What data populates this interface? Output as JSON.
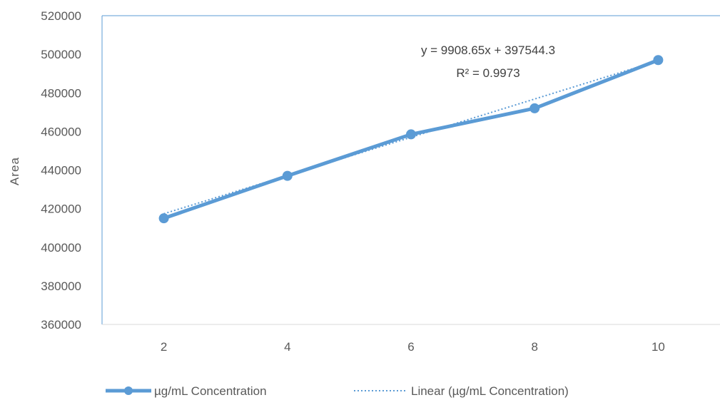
{
  "chart_data": {
    "type": "line",
    "x": [
      2,
      4,
      6,
      8,
      10
    ],
    "xlim": [
      1,
      11
    ],
    "ylim": [
      360000,
      520000
    ],
    "ytick_step": 20000,
    "xticks": [
      "2",
      "4",
      "6",
      "8",
      "10"
    ],
    "yticks": [
      "360000",
      "380000",
      "400000",
      "420000",
      "440000",
      "460000",
      "480000",
      "500000",
      "520000"
    ],
    "ylabel": "Area",
    "xlabel": "",
    "title": "",
    "grid": false,
    "legend_position": "bottom",
    "series": [
      {
        "name": "µg/mL Concentration",
        "values": [
          415000,
          437000,
          458500,
          472000,
          497000
        ],
        "color": "#5b9bd5",
        "style": "solid-with-markers"
      }
    ],
    "trendline": {
      "name": "Linear (µg/mL Concentration)",
      "type": "linear",
      "slope": 9908.65,
      "intercept": 397544.3,
      "color": "#5b9bd5",
      "style": "dotted"
    },
    "annotations": {
      "equation": "y = 9908.65x + 397544.3",
      "r_squared": "R² = 0.9973"
    }
  }
}
